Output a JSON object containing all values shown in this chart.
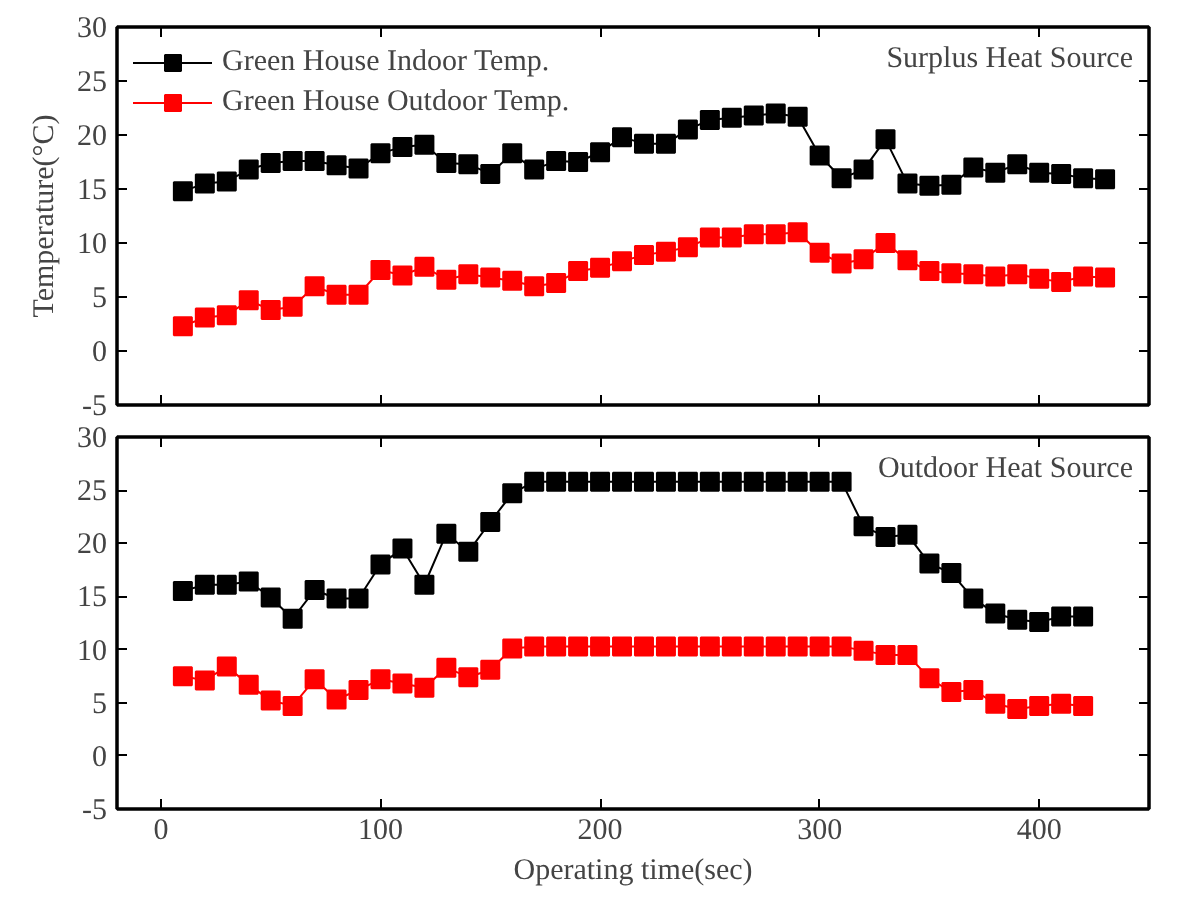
{
  "chart_data": [
    {
      "type": "line",
      "ylabel": "Temperature(°C)",
      "annotations": [
        "Surplus Heat Source"
      ],
      "xlim": [
        -20,
        450
      ],
      "xticks": [
        0,
        100,
        200,
        300,
        400
      ],
      "ylim": [
        -5,
        30
      ],
      "yticks": [
        -5,
        0,
        5,
        10,
        15,
        20,
        25,
        30
      ],
      "tick_labels": "y",
      "grid": false,
      "legend": "top left",
      "marker": "square",
      "line_style": "solid",
      "x": [
        10,
        20,
        30,
        40,
        50,
        60,
        70,
        80,
        90,
        100,
        110,
        120,
        130,
        140,
        150,
        160,
        170,
        180,
        190,
        200,
        210,
        220,
        230,
        240,
        250,
        260,
        270,
        280,
        290,
        300,
        310,
        320,
        330,
        340,
        350,
        360,
        370,
        380,
        390,
        400,
        410,
        420,
        430
      ],
      "series": [
        {
          "name": "Green House Indoor Temp.",
          "color": "#000000",
          "values": [
            14.8,
            15.5,
            15.7,
            16.8,
            17.4,
            17.6,
            17.6,
            17.2,
            16.9,
            18.3,
            18.9,
            19.1,
            17.4,
            17.3,
            16.4,
            18.3,
            16.8,
            17.6,
            17.5,
            18.4,
            19.8,
            19.2,
            19.2,
            20.5,
            21.4,
            21.6,
            21.8,
            22.0,
            21.7,
            18.1,
            16.0,
            16.8,
            19.6,
            15.5,
            15.3,
            15.4,
            17.0,
            16.5,
            17.3,
            16.5,
            16.4,
            16.0,
            15.9
          ]
        },
        {
          "name": "Green House Outdoor Temp.",
          "color": "#ff0000",
          "values": [
            2.3,
            3.1,
            3.3,
            4.7,
            3.8,
            4.1,
            6.0,
            5.2,
            5.2,
            7.5,
            7.0,
            7.8,
            6.6,
            7.1,
            6.8,
            6.5,
            6.0,
            6.3,
            7.4,
            7.7,
            8.3,
            8.9,
            9.2,
            9.6,
            10.5,
            10.5,
            10.8,
            10.8,
            11.0,
            9.1,
            8.1,
            8.5,
            10.0,
            8.4,
            7.4,
            7.2,
            7.1,
            6.9,
            7.1,
            6.7,
            6.4,
            6.9,
            6.8
          ]
        }
      ]
    },
    {
      "type": "line",
      "xlabel": "Operating time(sec)",
      "annotations": [
        "Outdoor Heat Source"
      ],
      "xlim": [
        -20,
        450
      ],
      "xticks": [
        0,
        100,
        200,
        300,
        400
      ],
      "ylim": [
        -5,
        30
      ],
      "yticks": [
        -5,
        0,
        5,
        10,
        15,
        20,
        25,
        30
      ],
      "grid": false,
      "legend": false,
      "marker": "square",
      "line_style": "solid",
      "x": [
        10,
        20,
        30,
        40,
        50,
        60,
        70,
        80,
        90,
        100,
        110,
        120,
        130,
        140,
        150,
        160,
        170,
        180,
        190,
        200,
        210,
        220,
        230,
        240,
        250,
        260,
        270,
        280,
        290,
        300,
        310,
        320,
        330,
        340,
        350,
        360,
        370,
        380,
        390,
        400,
        410,
        420
      ],
      "series": [
        {
          "color": "#000000",
          "values": [
            15.5,
            16.1,
            16.1,
            16.4,
            14.9,
            12.9,
            15.6,
            14.8,
            14.8,
            18.0,
            19.5,
            16.1,
            20.9,
            19.2,
            22.0,
            24.7,
            25.8,
            25.8,
            25.8,
            25.8,
            25.8,
            25.8,
            25.8,
            25.8,
            25.8,
            25.8,
            25.8,
            25.8,
            25.8,
            25.8,
            25.8,
            21.6,
            20.6,
            20.8,
            18.1,
            17.2,
            14.8,
            13.4,
            12.8,
            12.6,
            13.1,
            13.1
          ]
        },
        {
          "color": "#ff0000",
          "values": [
            7.5,
            7.1,
            8.4,
            6.7,
            5.2,
            4.7,
            7.2,
            5.3,
            6.2,
            7.2,
            6.8,
            6.4,
            8.3,
            7.4,
            8.1,
            10.1,
            10.3,
            10.3,
            10.3,
            10.3,
            10.3,
            10.3,
            10.3,
            10.3,
            10.3,
            10.3,
            10.3,
            10.3,
            10.3,
            10.3,
            10.3,
            9.9,
            9.5,
            9.5,
            7.3,
            6.0,
            6.2,
            4.9,
            4.4,
            4.7,
            4.9,
            4.7
          ]
        }
      ]
    }
  ]
}
